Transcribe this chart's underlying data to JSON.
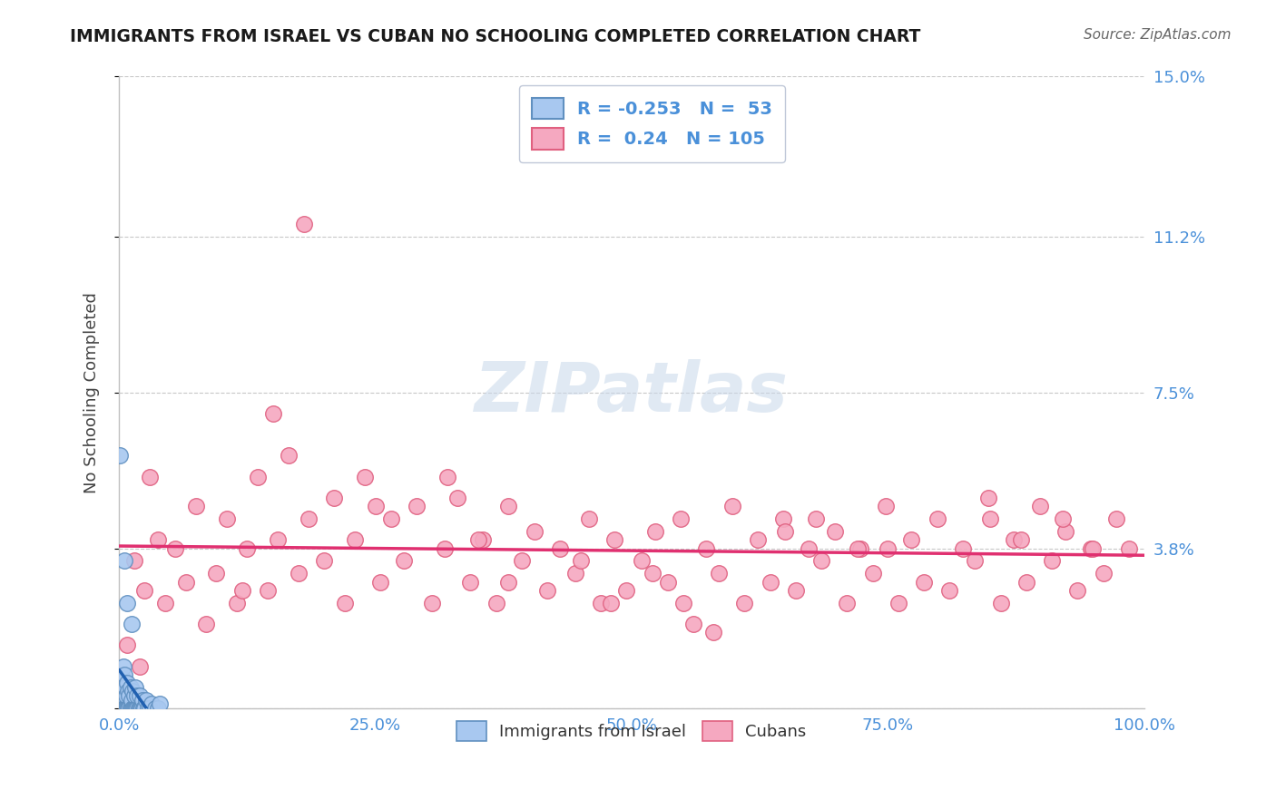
{
  "title": "IMMIGRANTS FROM ISRAEL VS CUBAN NO SCHOOLING COMPLETED CORRELATION CHART",
  "source": "Source: ZipAtlas.com",
  "ylabel": "No Schooling Completed",
  "watermark": "ZIPatlas",
  "xlim": [
    0.0,
    1.0
  ],
  "ylim": [
    0.0,
    0.15
  ],
  "yticks": [
    0.0,
    0.038,
    0.075,
    0.112,
    0.15
  ],
  "ytick_labels": [
    "",
    "3.8%",
    "7.5%",
    "11.2%",
    "15.0%"
  ],
  "xtick_labels": [
    "0.0%",
    "25.0%",
    "50.0%",
    "75.0%",
    "100.0%"
  ],
  "xticks": [
    0.0,
    0.25,
    0.5,
    0.75,
    1.0
  ],
  "background_color": "#ffffff",
  "grid_color": "#c8c8c8",
  "israel_color": "#a8c8f0",
  "cuban_color": "#f5a8c0",
  "israel_edge_color": "#6090c0",
  "cuban_edge_color": "#e06080",
  "israel_line_color": "#2060b0",
  "cuban_line_color": "#e03070",
  "israel_R": -0.253,
  "israel_N": 53,
  "cuban_R": 0.24,
  "cuban_N": 105,
  "title_color": "#1a1a1a",
  "axis_label_color": "#444444",
  "tick_color": "#4a90d9",
  "source_color": "#666666",
  "legend_text_color": "#4a90d9",
  "israel_scatter_x": [
    0.001,
    0.002,
    0.002,
    0.003,
    0.003,
    0.003,
    0.004,
    0.004,
    0.005,
    0.005,
    0.005,
    0.006,
    0.006,
    0.007,
    0.007,
    0.008,
    0.008,
    0.009,
    0.009,
    0.01,
    0.01,
    0.011,
    0.011,
    0.012,
    0.012,
    0.013,
    0.013,
    0.014,
    0.015,
    0.015,
    0.016,
    0.016,
    0.017,
    0.018,
    0.018,
    0.019,
    0.02,
    0.02,
    0.021,
    0.022,
    0.023,
    0.024,
    0.025,
    0.026,
    0.028,
    0.03,
    0.032,
    0.035,
    0.038,
    0.04,
    0.005,
    0.008,
    0.012
  ],
  "israel_scatter_y": [
    0.06,
    0.0,
    0.005,
    0.0,
    0.003,
    0.007,
    0.0,
    0.01,
    0.0,
    0.004,
    0.008,
    0.0,
    0.005,
    0.0,
    0.003,
    0.0,
    0.006,
    0.0,
    0.004,
    0.0,
    0.003,
    0.0,
    0.005,
    0.0,
    0.002,
    0.0,
    0.004,
    0.0,
    0.0,
    0.003,
    0.0,
    0.005,
    0.0,
    0.0,
    0.003,
    0.0,
    0.0,
    0.003,
    0.0,
    0.0,
    0.002,
    0.0,
    0.0,
    0.002,
    0.0,
    0.0,
    0.001,
    0.0,
    0.0,
    0.001,
    0.035,
    0.025,
    0.02
  ],
  "cuban_scatter_x": [
    0.008,
    0.015,
    0.02,
    0.025,
    0.03,
    0.038,
    0.045,
    0.055,
    0.065,
    0.075,
    0.085,
    0.095,
    0.105,
    0.115,
    0.125,
    0.135,
    0.145,
    0.155,
    0.165,
    0.175,
    0.185,
    0.2,
    0.21,
    0.22,
    0.23,
    0.24,
    0.255,
    0.265,
    0.278,
    0.29,
    0.305,
    0.318,
    0.33,
    0.342,
    0.355,
    0.368,
    0.38,
    0.393,
    0.405,
    0.418,
    0.43,
    0.445,
    0.458,
    0.47,
    0.483,
    0.495,
    0.51,
    0.523,
    0.535,
    0.548,
    0.56,
    0.573,
    0.585,
    0.598,
    0.61,
    0.623,
    0.635,
    0.648,
    0.66,
    0.673,
    0.685,
    0.698,
    0.71,
    0.723,
    0.735,
    0.748,
    0.76,
    0.773,
    0.785,
    0.798,
    0.81,
    0.823,
    0.835,
    0.848,
    0.86,
    0.873,
    0.885,
    0.898,
    0.91,
    0.923,
    0.935,
    0.948,
    0.96,
    0.973,
    0.985,
    0.15,
    0.25,
    0.35,
    0.45,
    0.55,
    0.65,
    0.75,
    0.85,
    0.95,
    0.12,
    0.32,
    0.52,
    0.72,
    0.92,
    0.18,
    0.48,
    0.68,
    0.88,
    0.38,
    0.58
  ],
  "cuban_scatter_y": [
    0.015,
    0.035,
    0.01,
    0.028,
    0.055,
    0.04,
    0.025,
    0.038,
    0.03,
    0.048,
    0.02,
    0.032,
    0.045,
    0.025,
    0.038,
    0.055,
    0.028,
    0.04,
    0.06,
    0.032,
    0.045,
    0.035,
    0.05,
    0.025,
    0.04,
    0.055,
    0.03,
    0.045,
    0.035,
    0.048,
    0.025,
    0.038,
    0.05,
    0.03,
    0.04,
    0.025,
    0.048,
    0.035,
    0.042,
    0.028,
    0.038,
    0.032,
    0.045,
    0.025,
    0.04,
    0.028,
    0.035,
    0.042,
    0.03,
    0.045,
    0.02,
    0.038,
    0.032,
    0.048,
    0.025,
    0.04,
    0.03,
    0.045,
    0.028,
    0.038,
    0.035,
    0.042,
    0.025,
    0.038,
    0.032,
    0.048,
    0.025,
    0.04,
    0.03,
    0.045,
    0.028,
    0.038,
    0.035,
    0.05,
    0.025,
    0.04,
    0.03,
    0.048,
    0.035,
    0.042,
    0.028,
    0.038,
    0.032,
    0.045,
    0.038,
    0.07,
    0.048,
    0.04,
    0.035,
    0.025,
    0.042,
    0.038,
    0.045,
    0.038,
    0.028,
    0.055,
    0.032,
    0.038,
    0.045,
    0.115,
    0.025,
    0.045,
    0.04,
    0.03,
    0.018
  ]
}
